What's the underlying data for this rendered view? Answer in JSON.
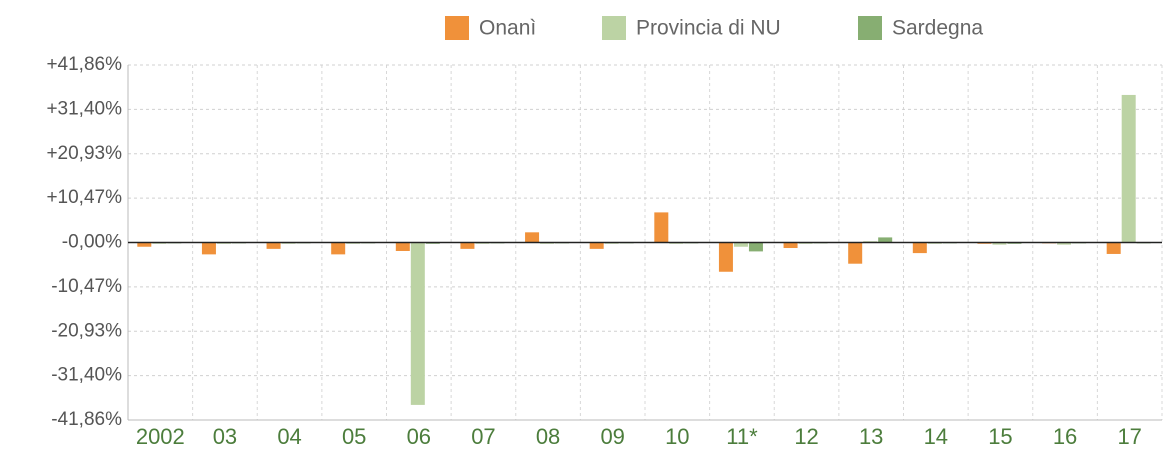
{
  "chart_data": {
    "type": "bar",
    "categories": [
      "2002",
      "03",
      "04",
      "05",
      "06",
      "07",
      "08",
      "09",
      "10",
      "11*",
      "12",
      "13",
      "14",
      "15",
      "16",
      "17"
    ],
    "series": [
      {
        "name": "Onanì",
        "color": "#f0913a",
        "values": [
          -1.0,
          -2.8,
          -1.5,
          -2.8,
          -2.0,
          -1.5,
          2.4,
          -1.5,
          7.1,
          -6.9,
          -1.3,
          -5.0,
          -2.5,
          -0.3,
          -0.2,
          -2.7
        ]
      },
      {
        "name": "Provincia di NU",
        "color": "#bcd3a4",
        "values": [
          -0.3,
          -0.3,
          -0.3,
          -0.3,
          -38.3,
          -0.3,
          -0.3,
          -0.3,
          -0.3,
          -1.0,
          -0.3,
          0.3,
          -0.3,
          -0.5,
          -0.5,
          34.8
        ]
      },
      {
        "name": "Sardegna",
        "color": "#87ae72",
        "values": [
          -0.2,
          -0.2,
          -0.2,
          -0.2,
          -0.3,
          -0.2,
          -0.2,
          -0.2,
          -0.2,
          -2.1,
          -0.2,
          1.2,
          -0.2,
          -0.3,
          -0.2,
          -0.2
        ]
      }
    ],
    "ylim": [
      -41.86,
      41.86
    ],
    "yticks": [
      {
        "value": 41.86,
        "label": "+41,86%"
      },
      {
        "value": 31.4,
        "label": "+31,40%"
      },
      {
        "value": 20.93,
        "label": "+20,93%"
      },
      {
        "value": 10.47,
        "label": "+10,47%"
      },
      {
        "value": 0,
        "label": "-0,00%"
      },
      {
        "value": -10.47,
        "label": "-10,47%"
      },
      {
        "value": -20.93,
        "label": "-20,93%"
      },
      {
        "value": -31.4,
        "label": "-31,40%"
      },
      {
        "value": -41.86,
        "label": "-41,86%"
      }
    ],
    "grid": true
  }
}
